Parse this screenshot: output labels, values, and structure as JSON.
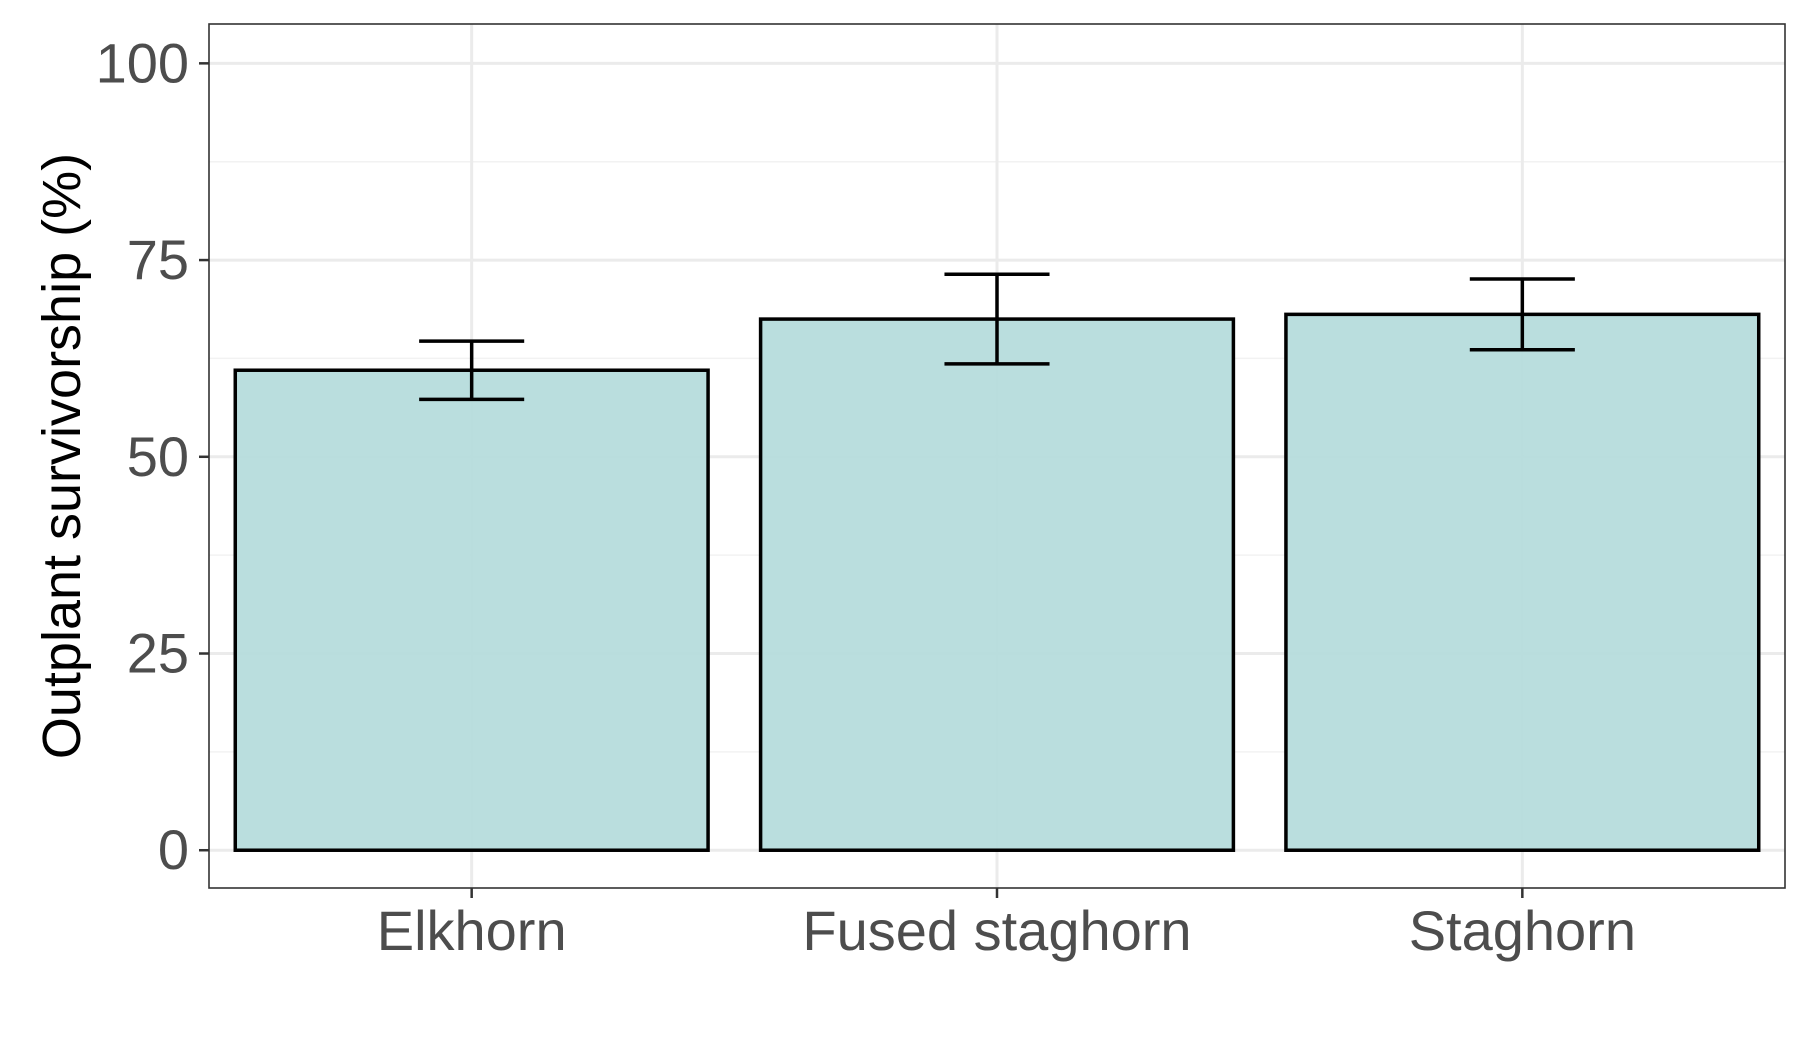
{
  "chart_data": {
    "type": "bar",
    "categories": [
      "Elkhorn",
      "Fused staghorn",
      "Staghorn"
    ],
    "values": [
      61,
      67.5,
      68.1
    ],
    "error_bars": [
      {
        "low": 57.3,
        "high": 64.7
      },
      {
        "low": 61.8,
        "high": 73.2
      },
      {
        "low": 63.6,
        "high": 72.6
      }
    ],
    "title": "",
    "xlabel": "",
    "ylabel": "Outplant survivorship (%)",
    "ylim": [
      -4.8,
      105
    ],
    "yticks": [
      0,
      25,
      50,
      75,
      100
    ],
    "ytick_labels": [
      "0",
      "25",
      "50",
      "75",
      "100"
    ],
    "grid": true,
    "legend": "none",
    "bar_fill": "#b6dcdc",
    "bar_outline": "#000000",
    "error_bar_color": "#000000",
    "major_grid_color": "#ebebeb",
    "minor_grid_color": "#f2f2f2",
    "panel_border_color": "#333333",
    "tick_label_color": "#4d4d4d"
  }
}
